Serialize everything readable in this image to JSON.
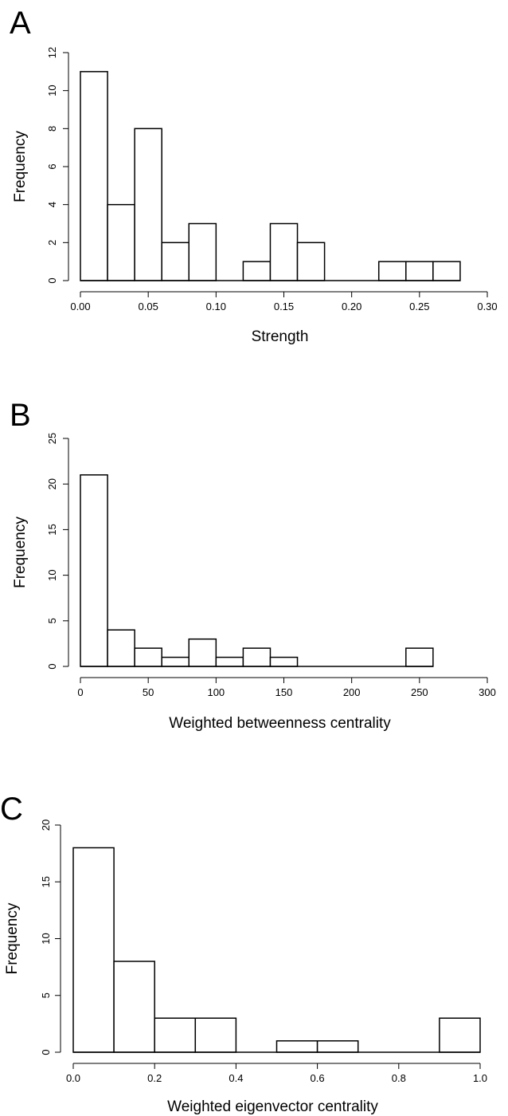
{
  "chart_data": [
    {
      "type": "bar",
      "panel_label": "A",
      "xlabel": "Strength",
      "ylabel": "Frequency",
      "bin_width": 0.02,
      "bins": [
        {
          "x0": 0.0,
          "x1": 0.02,
          "value": 11
        },
        {
          "x0": 0.02,
          "x1": 0.04,
          "value": 4
        },
        {
          "x0": 0.04,
          "x1": 0.06,
          "value": 8
        },
        {
          "x0": 0.06,
          "x1": 0.08,
          "value": 2
        },
        {
          "x0": 0.08,
          "x1": 0.1,
          "value": 3
        },
        {
          "x0": 0.1,
          "x1": 0.12,
          "value": 0
        },
        {
          "x0": 0.12,
          "x1": 0.14,
          "value": 1
        },
        {
          "x0": 0.14,
          "x1": 0.16,
          "value": 3
        },
        {
          "x0": 0.16,
          "x1": 0.18,
          "value": 2
        },
        {
          "x0": 0.18,
          "x1": 0.2,
          "value": 0
        },
        {
          "x0": 0.2,
          "x1": 0.22,
          "value": 0
        },
        {
          "x0": 0.22,
          "x1": 0.24,
          "value": 1
        },
        {
          "x0": 0.24,
          "x1": 0.26,
          "value": 1
        },
        {
          "x0": 0.26,
          "x1": 0.28,
          "value": 1
        }
      ],
      "xlim": [
        0,
        0.3
      ],
      "xticks": [
        0,
        0.05,
        0.1,
        0.15,
        0.2,
        0.25,
        0.3
      ],
      "xtick_labels": [
        "0.00",
        "0.05",
        "0.10",
        "0.15",
        "0.20",
        "0.25",
        "0.30"
      ],
      "ylim": [
        0,
        12
      ],
      "yticks": [
        0,
        2,
        4,
        6,
        8,
        10,
        12
      ],
      "ytick_labels": [
        "0",
        "2",
        "4",
        "6",
        "8",
        "10",
        "12"
      ],
      "grid": false
    },
    {
      "type": "bar",
      "panel_label": "B",
      "xlabel": "Weighted betweenness centrality",
      "ylabel": "Frequency",
      "bin_width": 20,
      "bins": [
        {
          "x0": 0,
          "x1": 20,
          "value": 21
        },
        {
          "x0": 20,
          "x1": 40,
          "value": 4
        },
        {
          "x0": 40,
          "x1": 60,
          "value": 2
        },
        {
          "x0": 60,
          "x1": 80,
          "value": 1
        },
        {
          "x0": 80,
          "x1": 100,
          "value": 3
        },
        {
          "x0": 100,
          "x1": 120,
          "value": 1
        },
        {
          "x0": 120,
          "x1": 140,
          "value": 2
        },
        {
          "x0": 140,
          "x1": 160,
          "value": 1
        },
        {
          "x0": 160,
          "x1": 180,
          "value": 0
        },
        {
          "x0": 180,
          "x1": 200,
          "value": 0
        },
        {
          "x0": 200,
          "x1": 220,
          "value": 0
        },
        {
          "x0": 220,
          "x1": 240,
          "value": 0
        },
        {
          "x0": 240,
          "x1": 260,
          "value": 2
        }
      ],
      "xlim": [
        0,
        300
      ],
      "xticks": [
        0,
        50,
        100,
        150,
        200,
        250,
        300
      ],
      "xtick_labels": [
        "0",
        "50",
        "100",
        "150",
        "200",
        "250",
        "300"
      ],
      "ylim": [
        0,
        25
      ],
      "yticks": [
        0,
        5,
        10,
        15,
        20,
        25
      ],
      "ytick_labels": [
        "0",
        "5",
        "10",
        "15",
        "20",
        "25"
      ],
      "grid": false
    },
    {
      "type": "bar",
      "panel_label": "C",
      "xlabel": "Weighted eigenvector centrality",
      "ylabel": "Frequency",
      "bin_width": 0.1,
      "bins": [
        {
          "x0": 0.0,
          "x1": 0.1,
          "value": 18
        },
        {
          "x0": 0.1,
          "x1": 0.2,
          "value": 8
        },
        {
          "x0": 0.2,
          "x1": 0.3,
          "value": 3
        },
        {
          "x0": 0.3,
          "x1": 0.4,
          "value": 3
        },
        {
          "x0": 0.4,
          "x1": 0.5,
          "value": 0
        },
        {
          "x0": 0.5,
          "x1": 0.6,
          "value": 1
        },
        {
          "x0": 0.6,
          "x1": 0.7,
          "value": 1
        },
        {
          "x0": 0.7,
          "x1": 0.8,
          "value": 0
        },
        {
          "x0": 0.8,
          "x1": 0.9,
          "value": 0
        },
        {
          "x0": 0.9,
          "x1": 1.0,
          "value": 3
        }
      ],
      "xlim": [
        0,
        1.0
      ],
      "xticks": [
        0,
        0.2,
        0.4,
        0.6,
        0.8,
        1.0
      ],
      "xtick_labels": [
        "0.0",
        "0.2",
        "0.4",
        "0.6",
        "0.8",
        "1.0"
      ],
      "ylim": [
        0,
        20
      ],
      "yticks": [
        0,
        5,
        10,
        15,
        20
      ],
      "ytick_labels": [
        "0",
        "5",
        "10",
        "15",
        "20"
      ],
      "grid": false
    }
  ]
}
